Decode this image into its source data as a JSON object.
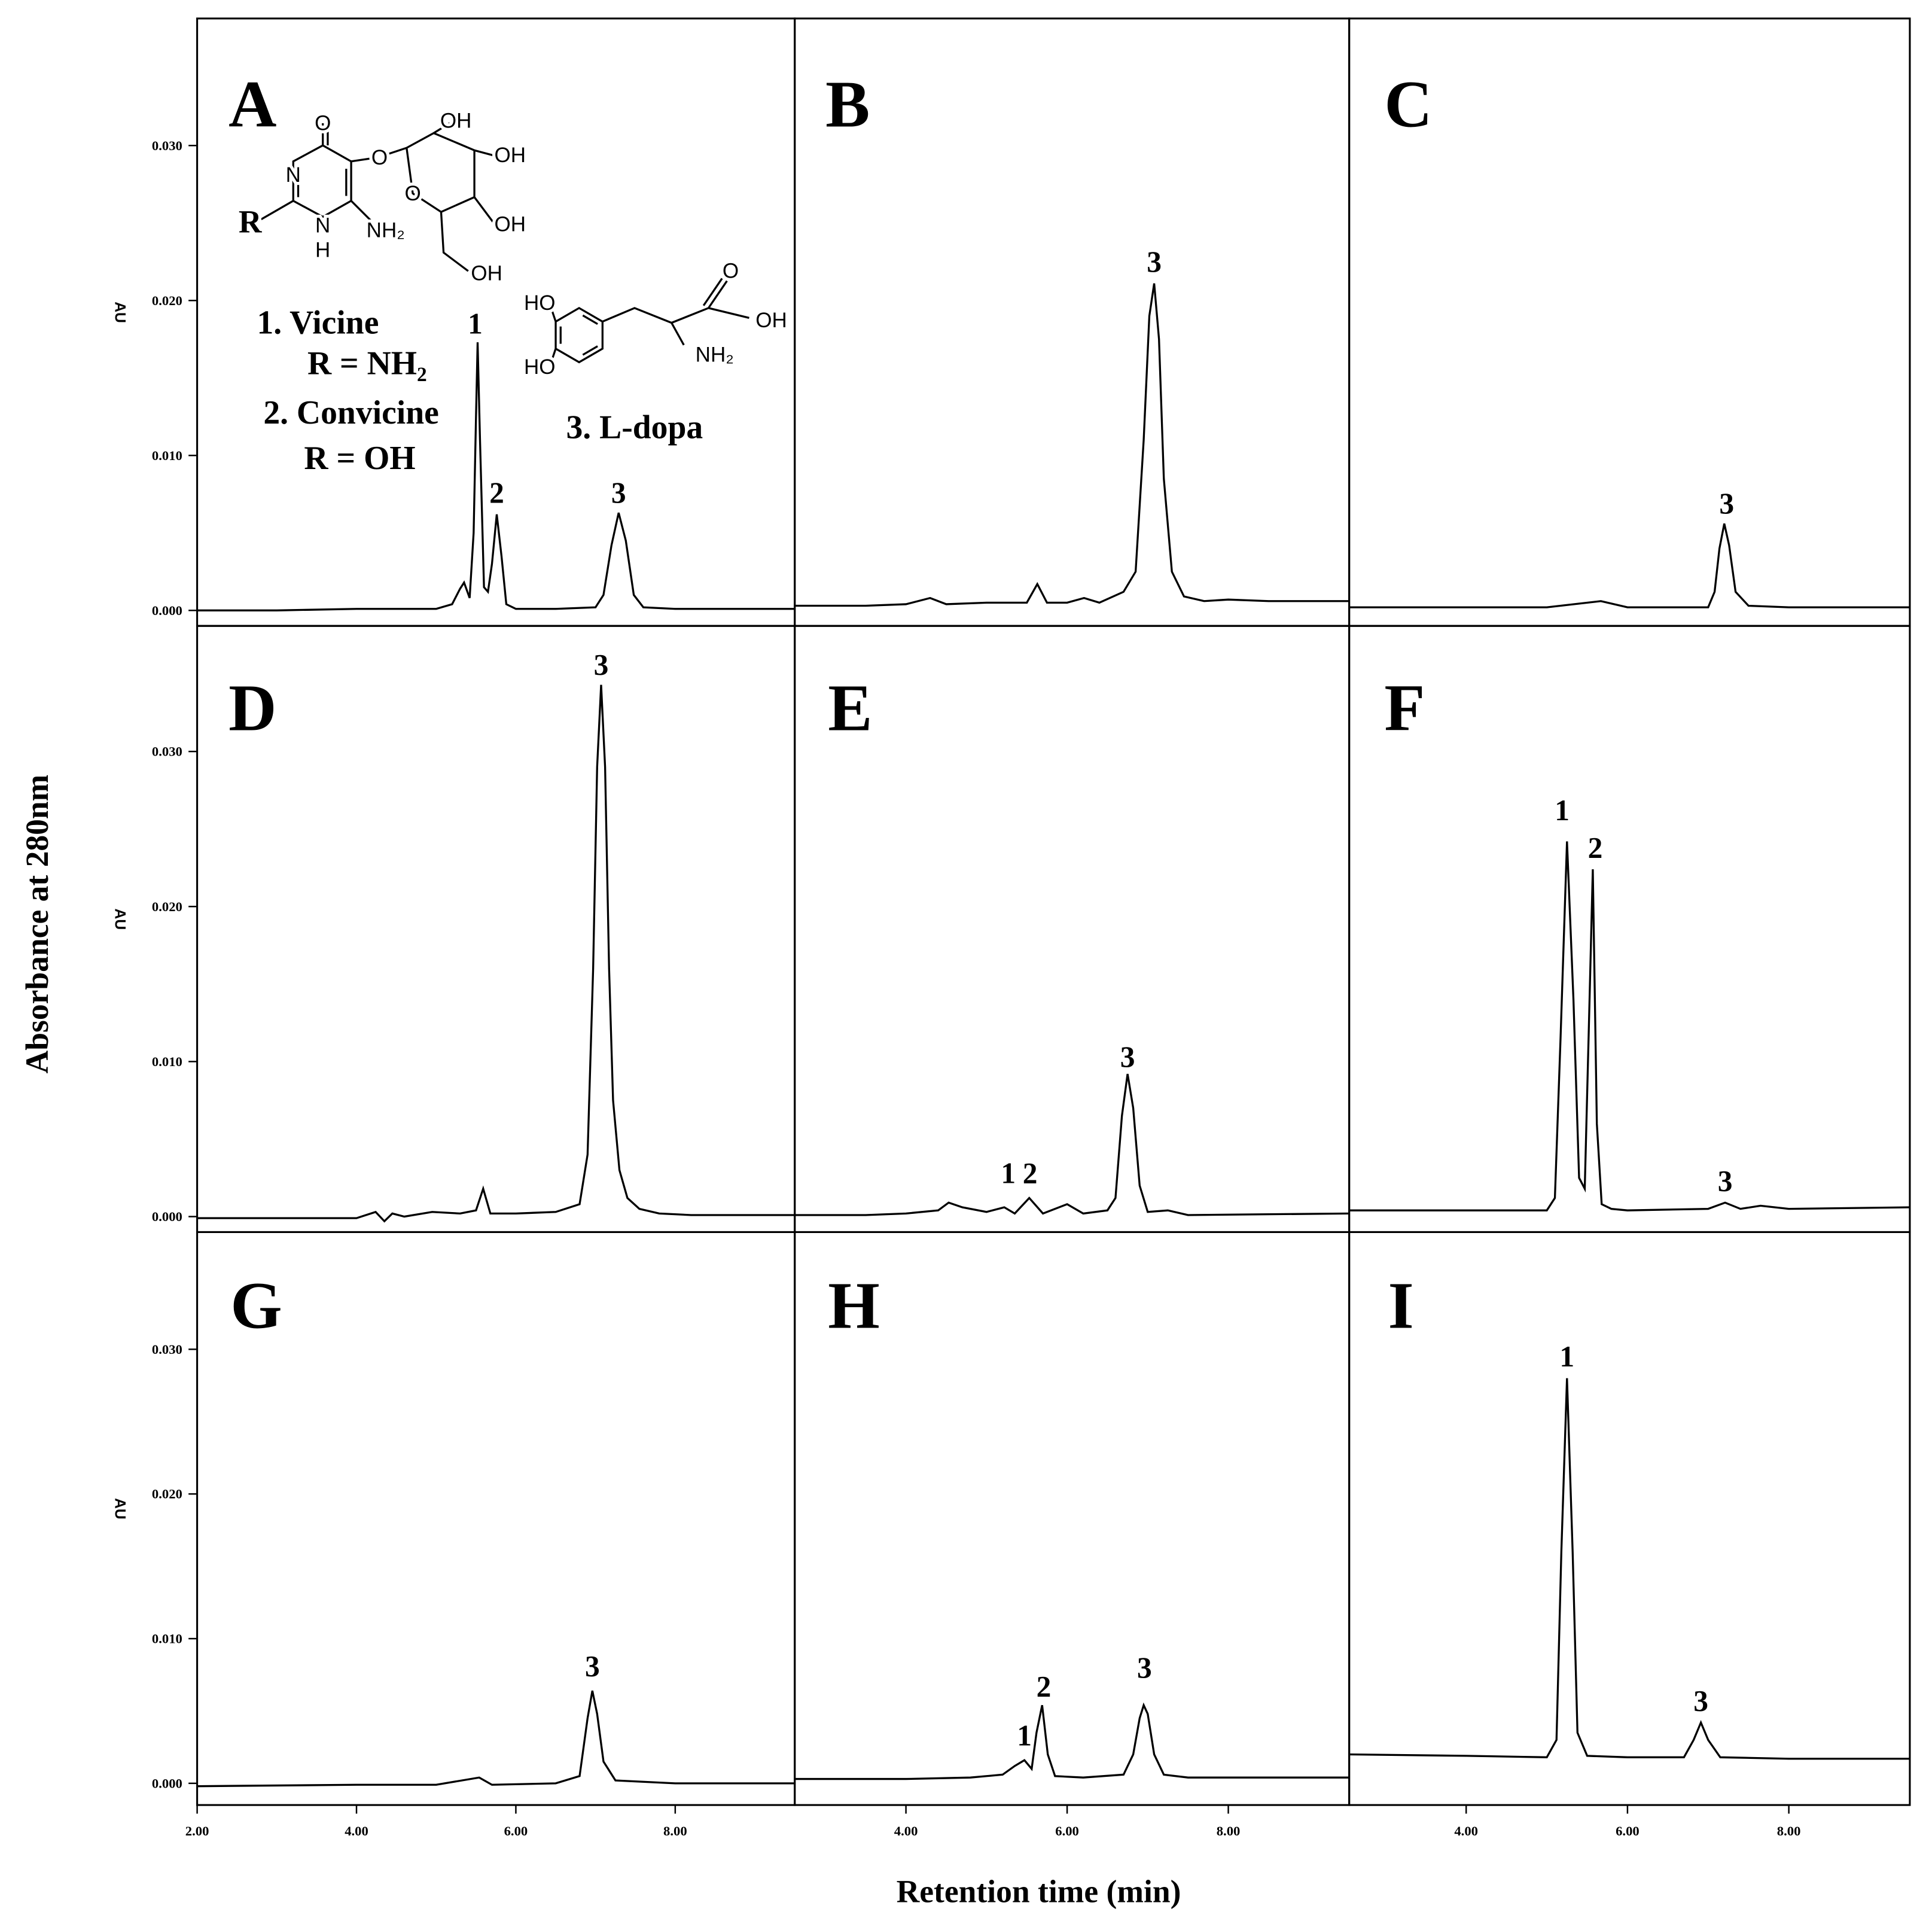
{
  "xlabel": "Retention time (min)",
  "ylabel": "Absorbance at 280nm",
  "chart_data": [
    {
      "type": "line",
      "title": "A",
      "ylabel": "AU",
      "color": "#000000",
      "xlim": [
        2,
        9.5
      ],
      "ylim": [
        -0.001,
        0.0382
      ],
      "yticks": [
        {
          "value": 0,
          "label": "0.000"
        },
        {
          "value": 0.01,
          "label": "0.010"
        },
        {
          "value": 0.02,
          "label": "0.020"
        },
        {
          "value": 0.03,
          "label": "0.030"
        }
      ],
      "x": [
        2,
        3,
        4,
        4.5,
        5,
        5.2,
        5.3,
        5.35,
        5.42,
        5.47,
        5.5,
        5.52,
        5.55,
        5.6,
        5.65,
        5.7,
        5.76,
        5.82,
        5.88,
        6,
        6.5,
        7,
        7.1,
        7.2,
        7.29,
        7.38,
        7.48,
        7.6,
        8,
        9,
        9.5
      ],
      "values": [
        0,
        0,
        0.0001,
        0.0001,
        0.0001,
        0.0004,
        0.0014,
        0.0018,
        0.0008,
        0.005,
        0.0125,
        0.0173,
        0.011,
        0.0015,
        0.0012,
        0.003,
        0.0062,
        0.0035,
        0.0004,
        0.0001,
        0.0001,
        0.0002,
        0.001,
        0.0042,
        0.0063,
        0.0045,
        0.001,
        0.0002,
        0.0001,
        0.0001,
        0.0001
      ],
      "annotations": [
        {
          "text": "1",
          "x": 5.49,
          "y": 0.0185
        },
        {
          "text": "2",
          "x": 5.76,
          "y": 0.0076
        },
        {
          "text": "3",
          "x": 7.29,
          "y": 0.0076
        }
      ],
      "notes": [
        "1. Vicine",
        "R = NH₂",
        "2. Convicine",
        "R = OH",
        "3. L-dopa"
      ],
      "structure_labels": [
        "O",
        "N",
        "R",
        "N",
        "H",
        "NH₂",
        "O",
        "O",
        "OH",
        "OH",
        "OH",
        "OH",
        "HO",
        "HO",
        "O",
        "OH",
        "NH₂"
      ]
    },
    {
      "type": "line",
      "title": "B",
      "color": "#000000",
      "xlim": [
        2.62,
        9.5
      ],
      "ylim": [
        -0.001,
        0.0382
      ],
      "x": [
        2.62,
        3.5,
        4,
        4.3,
        4.5,
        5,
        5.5,
        5.63,
        5.75,
        6,
        6.21,
        6.4,
        6.7,
        6.85,
        6.95,
        7.02,
        7.08,
        7.14,
        7.2,
        7.3,
        7.45,
        7.7,
        8,
        8.5,
        9.5
      ],
      "values": [
        0.0003,
        0.0003,
        0.0004,
        0.0008,
        0.0004,
        0.0005,
        0.0005,
        0.0017,
        0.0005,
        0.0005,
        0.0008,
        0.0005,
        0.0012,
        0.0025,
        0.011,
        0.019,
        0.0211,
        0.0175,
        0.0085,
        0.0025,
        0.0009,
        0.0006,
        0.0007,
        0.0006,
        0.0006
      ],
      "annotations": [
        {
          "text": "3",
          "x": 7.08,
          "y": 0.0225
        }
      ]
    },
    {
      "type": "line",
      "title": "C",
      "color": "#000000",
      "xlim": [
        2.55,
        9.5
      ],
      "ylim": [
        -0.001,
        0.0382
      ],
      "x": [
        2.55,
        4,
        5,
        5.67,
        6,
        7,
        7.08,
        7.14,
        7.2,
        7.26,
        7.34,
        7.5,
        8,
        9.5
      ],
      "values": [
        0.0002,
        0.0002,
        0.0002,
        0.0006,
        0.0002,
        0.0002,
        0.0012,
        0.004,
        0.0056,
        0.0042,
        0.0012,
        0.0003,
        0.0002,
        0.0002
      ],
      "annotations": [
        {
          "text": "3",
          "x": 7.23,
          "y": 0.0069
        }
      ]
    },
    {
      "type": "line",
      "title": "D",
      "ylabel": "AU",
      "color": "#000000",
      "xlim": [
        2,
        9.5
      ],
      "ylim": [
        -0.001,
        0.0381
      ],
      "yticks": [
        {
          "value": 0,
          "label": "0.000"
        },
        {
          "value": 0.01,
          "label": "0.010"
        },
        {
          "value": 0.02,
          "label": "0.020"
        },
        {
          "value": 0.03,
          "label": "0.030"
        }
      ],
      "x": [
        2,
        3,
        4,
        4.24,
        4.35,
        4.45,
        4.6,
        4.95,
        5.3,
        5.5,
        5.59,
        5.68,
        6,
        6.5,
        6.8,
        6.9,
        6.97,
        7.02,
        7.07,
        7.12,
        7.17,
        7.22,
        7.3,
        7.4,
        7.55,
        7.8,
        8.2,
        9.5
      ],
      "values": [
        -0.0001,
        -0.0001,
        -0.0001,
        0.0003,
        -0.0003,
        0.0002,
        0,
        0.0003,
        0.0002,
        0.0004,
        0.0018,
        0.0002,
        0.0002,
        0.0003,
        0.0008,
        0.004,
        0.016,
        0.029,
        0.0343,
        0.029,
        0.016,
        0.0075,
        0.003,
        0.0012,
        0.0005,
        0.0002,
        0.0001,
        0.0001
      ],
      "annotations": [
        {
          "text": "3",
          "x": 7.07,
          "y": 0.0356
        }
      ]
    },
    {
      "type": "line",
      "title": "E",
      "color": "#000000",
      "xlim": [
        2.62,
        9.5
      ],
      "ylim": [
        -0.001,
        0.0381
      ],
      "x": [
        2.62,
        3.5,
        4,
        4.4,
        4.53,
        4.7,
        5,
        5.22,
        5.35,
        5.53,
        5.7,
        6,
        6.2,
        6.5,
        6.6,
        6.68,
        6.75,
        6.82,
        6.9,
        7,
        7.25,
        7.5,
        9.5
      ],
      "values": [
        0.0001,
        0.0001,
        0.0002,
        0.0004,
        0.0009,
        0.0006,
        0.0003,
        0.0006,
        0.0002,
        0.0012,
        0.0002,
        0.0008,
        0.0002,
        0.0004,
        0.0012,
        0.0065,
        0.0092,
        0.007,
        0.002,
        0.0003,
        0.0004,
        0.0001,
        0.0002
      ],
      "annotations": [
        {
          "text": "1",
          "x": 5.27,
          "y": 0.0028
        },
        {
          "text": "2",
          "x": 5.54,
          "y": 0.0028
        },
        {
          "text": "3",
          "x": 6.75,
          "y": 0.0103
        }
      ]
    },
    {
      "type": "line",
      "title": "F",
      "color": "#000000",
      "xlim": [
        2.55,
        9.5
      ],
      "ylim": [
        -0.001,
        0.0381
      ],
      "x": [
        2.55,
        4,
        5,
        5.1,
        5.17,
        5.25,
        5.33,
        5.4,
        5.47,
        5.52,
        5.57,
        5.62,
        5.68,
        5.8,
        6,
        7,
        7.21,
        7.4,
        7.65,
        8,
        9.5
      ],
      "values": [
        0.0004,
        0.0004,
        0.0004,
        0.0012,
        0.0115,
        0.0242,
        0.014,
        0.0025,
        0.0018,
        0.012,
        0.0224,
        0.006,
        0.0008,
        0.0005,
        0.0004,
        0.0005,
        0.0009,
        0.0005,
        0.0007,
        0.0005,
        0.0006
      ],
      "annotations": [
        {
          "text": "1",
          "x": 5.19,
          "y": 0.0262
        },
        {
          "text": "2",
          "x": 5.6,
          "y": 0.0238
        },
        {
          "text": "3",
          "x": 7.21,
          "y": 0.0023
        }
      ]
    },
    {
      "type": "line",
      "title": "G",
      "ylabel": "AU",
      "color": "#000000",
      "xlim": [
        2,
        9.5
      ],
      "ylim": [
        -0.0015,
        0.0381
      ],
      "yticks": [
        {
          "value": 0,
          "label": "0.000"
        },
        {
          "value": 0.01,
          "label": "0.010"
        },
        {
          "value": 0.02,
          "label": "0.020"
        },
        {
          "value": 0.03,
          "label": "0.030"
        }
      ],
      "xticks": [
        {
          "value": 2,
          "label": "2.00"
        },
        {
          "value": 4,
          "label": "4.00"
        },
        {
          "value": 6,
          "label": "6.00"
        },
        {
          "value": 8,
          "label": "8.00"
        }
      ],
      "x": [
        2,
        4,
        5,
        5.54,
        5.7,
        6.5,
        6.8,
        6.9,
        6.96,
        7.02,
        7.1,
        7.25,
        8,
        9.5
      ],
      "values": [
        -0.0002,
        -0.0001,
        -0.0001,
        0.0004,
        -0.0001,
        0,
        0.0005,
        0.0045,
        0.0064,
        0.0048,
        0.0015,
        0.0002,
        0,
        0
      ],
      "annotations": [
        {
          "text": "3",
          "x": 6.96,
          "y": 0.0081
        }
      ]
    },
    {
      "type": "line",
      "title": "H",
      "color": "#000000",
      "xlim": [
        2.62,
        9.5
      ],
      "ylim": [
        -0.0015,
        0.0381
      ],
      "xticks": [
        {
          "value": 4,
          "label": "4.00"
        },
        {
          "value": 6,
          "label": "6.00"
        },
        {
          "value": 8,
          "label": "8.00"
        }
      ],
      "x": [
        2.62,
        4,
        4.8,
        5.2,
        5.35,
        5.47,
        5.56,
        5.62,
        5.69,
        5.76,
        5.85,
        6.2,
        6.7,
        6.82,
        6.9,
        6.95,
        7,
        7.08,
        7.2,
        7.5,
        9.5
      ],
      "values": [
        0.0003,
        0.0003,
        0.0004,
        0.0006,
        0.0012,
        0.0016,
        0.001,
        0.0035,
        0.0054,
        0.002,
        0.0005,
        0.0004,
        0.0006,
        0.002,
        0.0045,
        0.0054,
        0.0048,
        0.002,
        0.0006,
        0.0004,
        0.0004
      ],
      "annotations": [
        {
          "text": "1",
          "x": 5.47,
          "y": 0.0033
        },
        {
          "text": "2",
          "x": 5.71,
          "y": 0.0067
        },
        {
          "text": "3",
          "x": 6.96,
          "y": 0.008
        }
      ]
    },
    {
      "type": "line",
      "title": "I",
      "color": "#000000",
      "xlim": [
        2.55,
        9.5
      ],
      "ylim": [
        -0.0015,
        0.0381
      ],
      "xticks": [
        {
          "value": 4,
          "label": "4.00"
        },
        {
          "value": 6,
          "label": "6.00"
        },
        {
          "value": 8,
          "label": "8.00"
        }
      ],
      "x": [
        2.55,
        4,
        5,
        5.12,
        5.18,
        5.25,
        5.32,
        5.38,
        5.5,
        6,
        6.7,
        6.82,
        6.91,
        7,
        7.15,
        8,
        9.5
      ],
      "values": [
        0.002,
        0.0019,
        0.0018,
        0.003,
        0.016,
        0.028,
        0.016,
        0.0035,
        0.0019,
        0.0018,
        0.0018,
        0.003,
        0.0042,
        0.003,
        0.0018,
        0.0017,
        0.0017
      ],
      "annotations": [
        {
          "text": "1",
          "x": 5.25,
          "y": 0.0295
        },
        {
          "text": "3",
          "x": 6.91,
          "y": 0.0057
        }
      ]
    }
  ]
}
